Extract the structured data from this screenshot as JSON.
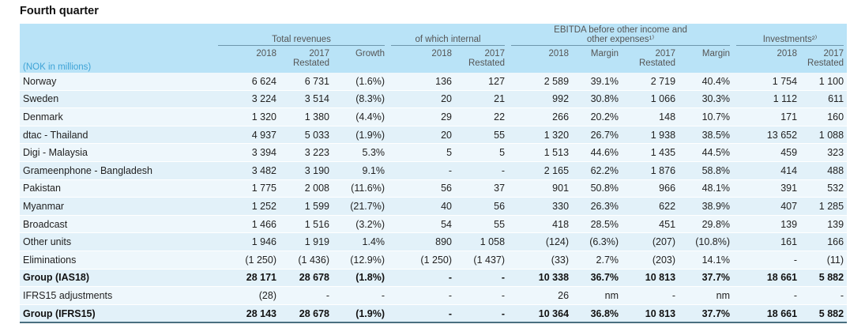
{
  "title": "Fourth quarter",
  "header": {
    "groups": {
      "total_revenues": "Total revenues",
      "of_which_internal": "of which internal",
      "ebitda_line1": "EBITDA before other income and",
      "ebitda_line2": "other expenses¹⁾",
      "investments": "Investments²⁾"
    },
    "unit": "(NOK in millions)",
    "sub": [
      "2018",
      "2017\nRestated",
      "Growth",
      "2018",
      "2017\nRestated",
      "2018",
      "Margin",
      "2017\nRestated",
      "Margin",
      "2018",
      "2017\nRestated"
    ]
  },
  "rows": [
    {
      "label": "Norway",
      "bold": false,
      "values": [
        "6 624",
        "6 731",
        "(1.6%)",
        "136",
        "127",
        "2 589",
        "39.1%",
        "2 719",
        "40.4%",
        "1 754",
        "1 100"
      ]
    },
    {
      "label": "Sweden",
      "bold": false,
      "values": [
        "3 224",
        "3 514",
        "(8.3%)",
        "20",
        "21",
        "992",
        "30.8%",
        "1 066",
        "30.3%",
        "1 112",
        "611"
      ]
    },
    {
      "label": "Denmark",
      "bold": false,
      "values": [
        "1 320",
        "1 380",
        "(4.4%)",
        "29",
        "22",
        "266",
        "20.2%",
        "148",
        "10.7%",
        "171",
        "160"
      ]
    },
    {
      "label": "dtac - Thailand",
      "bold": false,
      "values": [
        "4 937",
        "5 033",
        "(1.9%)",
        "20",
        "55",
        "1 320",
        "26.7%",
        "1 938",
        "38.5%",
        "13 652",
        "1 088"
      ]
    },
    {
      "label": "Digi - Malaysia",
      "bold": false,
      "values": [
        "3 394",
        "3 223",
        "5.3%",
        "5",
        "5",
        "1 513",
        "44.6%",
        "1 435",
        "44.5%",
        "459",
        "323"
      ]
    },
    {
      "label": "Grameenphone - Bangladesh",
      "bold": false,
      "values": [
        "3 482",
        "3 190",
        "9.1%",
        "-",
        "-",
        "2 165",
        "62.2%",
        "1 876",
        "58.8%",
        "414",
        "488"
      ]
    },
    {
      "label": "Pakistan",
      "bold": false,
      "values": [
        "1 775",
        "2 008",
        "(11.6%)",
        "56",
        "37",
        "901",
        "50.8%",
        "966",
        "48.1%",
        "391",
        "532"
      ]
    },
    {
      "label": "Myanmar",
      "bold": false,
      "values": [
        "1 252",
        "1 599",
        "(21.7%)",
        "40",
        "56",
        "330",
        "26.3%",
        "622",
        "38.9%",
        "407",
        "1 285"
      ]
    },
    {
      "label": "Broadcast",
      "bold": false,
      "values": [
        "1 466",
        "1 516",
        "(3.2%)",
        "54",
        "55",
        "418",
        "28.5%",
        "451",
        "29.8%",
        "139",
        "139"
      ]
    },
    {
      "label": "Other units",
      "bold": false,
      "values": [
        "1 946",
        "1 919",
        "1.4%",
        "890",
        "1 058",
        "(124)",
        "(6.3%)",
        "(207)",
        "(10.8%)",
        "161",
        "166"
      ]
    },
    {
      "label": "Eliminations",
      "bold": false,
      "values": [
        "(1 250)",
        "(1 436)",
        "(12.9%)",
        "(1 250)",
        "(1 437)",
        "(33)",
        "2.7%",
        "(203)",
        "14.1%",
        "-",
        "(11)"
      ]
    },
    {
      "label": "Group (IAS18)",
      "bold": true,
      "values": [
        "28 171",
        "28 678",
        "(1.8%)",
        "-",
        "-",
        "10 338",
        "36.7%",
        "10 813",
        "37.7%",
        "18 661",
        "5 882"
      ]
    },
    {
      "label": "IFRS15 adjustments",
      "bold": false,
      "values": [
        "(28)",
        "-",
        "-",
        "-",
        "-",
        "26",
        "nm",
        "-",
        "nm",
        "-",
        "-"
      ]
    },
    {
      "label": "Group (IFRS15)",
      "bold": true,
      "values": [
        "28 143",
        "28 678",
        "(1.9%)",
        "-",
        "-",
        "10 364",
        "36.8%",
        "10 813",
        "37.7%",
        "18 661",
        "5 882"
      ]
    }
  ]
}
